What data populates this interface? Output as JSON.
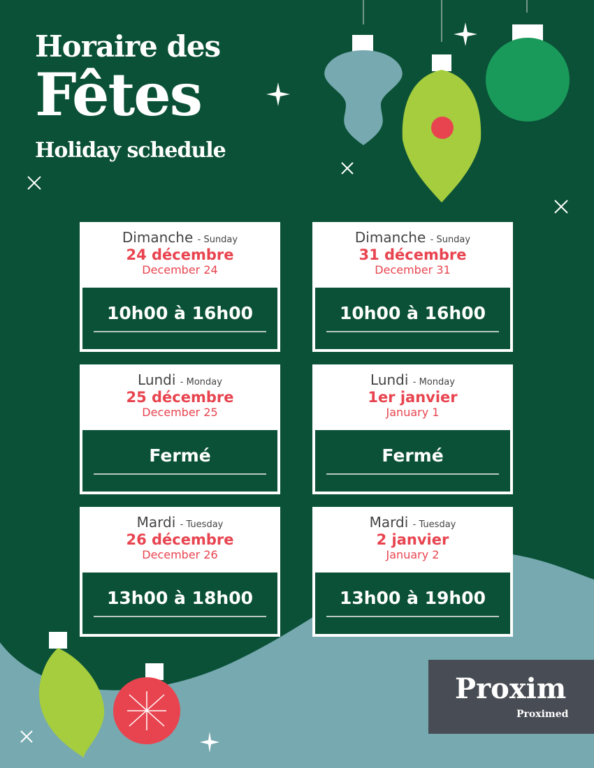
{
  "header": {
    "line1": "Horaire des",
    "line2": "Fêtes",
    "line3": "Holiday schedule"
  },
  "days": [
    {
      "day_fr": "Dimanche",
      "day_en": "- Sunday",
      "date_fr": "24 décembre",
      "date_en": "December 24",
      "hours": "10h00 à 16h00"
    },
    {
      "day_fr": "Dimanche",
      "day_en": "- Sunday",
      "date_fr": "31 décembre",
      "date_en": "December 31",
      "hours": "10h00 à 16h00"
    },
    {
      "day_fr": "Lundi",
      "day_en": "- Monday",
      "date_fr": "25 décembre",
      "date_en": "December 25",
      "hours": "Fermé"
    },
    {
      "day_fr": "Lundi",
      "day_en": "- Monday",
      "date_fr": "1er janvier",
      "date_en": "January 1",
      "hours": "Fermé"
    },
    {
      "day_fr": "Mardi",
      "day_en": "- Tuesday",
      "date_fr": "26 décembre",
      "date_en": "December 26",
      "hours": "13h00 à 18h00"
    },
    {
      "day_fr": "Mardi",
      "day_en": "- Tuesday",
      "date_fr": "2 janvier",
      "date_en": "January 2",
      "hours": "13h00 à 19h00"
    }
  ],
  "logo": {
    "main": "Proxim",
    "sub": "Proximed"
  },
  "colors": {
    "background": "#0a5137",
    "accent": "#e8444f",
    "teal": "#77a9b0",
    "lime": "#a5cd3e"
  }
}
